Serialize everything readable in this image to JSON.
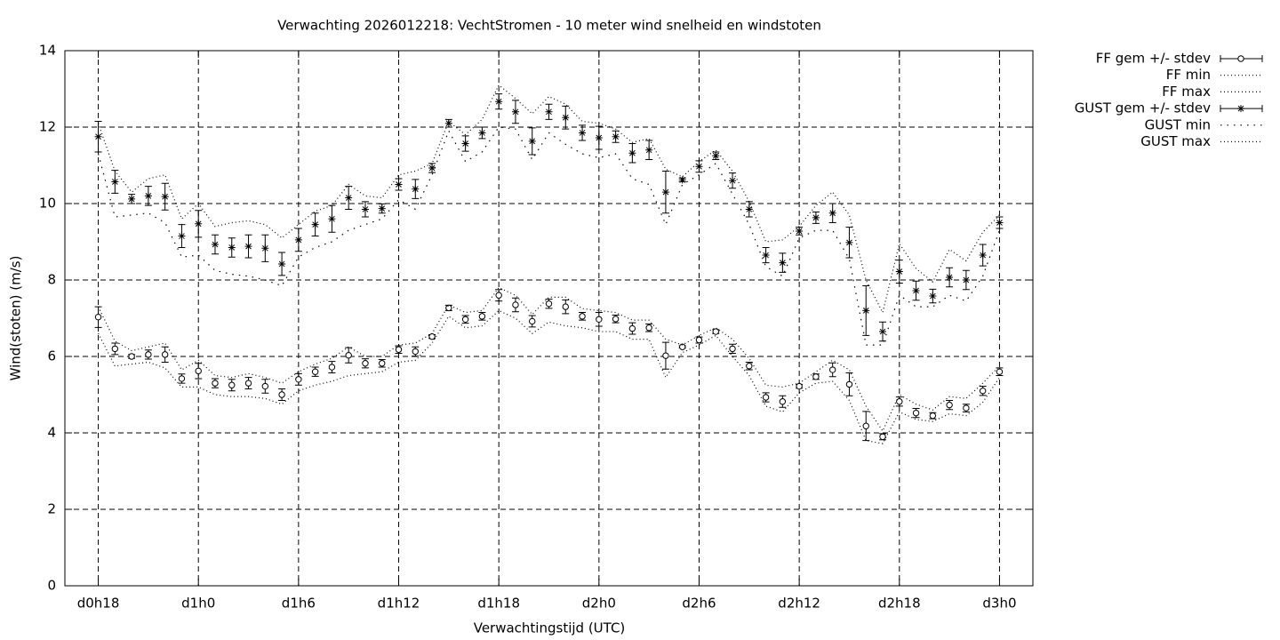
{
  "chart_data": {
    "type": "errorbar",
    "title": "Verwachting 2026012218: VechtStromen - 10 meter wind snelheid en windstoten",
    "x_label": "Verwachtingstijd (UTC)",
    "y_label": "Wind(stoten) (m/s)",
    "x": [
      18,
      19,
      20,
      21,
      22,
      23,
      24,
      25,
      26,
      27,
      28,
      29,
      30,
      31,
      32,
      33,
      34,
      35,
      36,
      37,
      38,
      39,
      40,
      41,
      42,
      43,
      44,
      45,
      46,
      47,
      48,
      49,
      50,
      51,
      52,
      53,
      54,
      55,
      56,
      57,
      58,
      59,
      60,
      61,
      62,
      63,
      64,
      65,
      66,
      67,
      68,
      69,
      70,
      71,
      72
    ],
    "xlim": [
      16,
      74
    ],
    "xticks": [
      {
        "value": 18,
        "label": "d0h18"
      },
      {
        "value": 24,
        "label": "d1h0"
      },
      {
        "value": 30,
        "label": "d1h6"
      },
      {
        "value": 36,
        "label": "d1h12"
      },
      {
        "value": 42,
        "label": "d1h18"
      },
      {
        "value": 48,
        "label": "d2h0"
      },
      {
        "value": 54,
        "label": "d2h6"
      },
      {
        "value": 60,
        "label": "d2h12"
      },
      {
        "value": 66,
        "label": "d2h18"
      },
      {
        "value": 72,
        "label": "d3h0"
      }
    ],
    "ylim": [
      0,
      14
    ],
    "yticks": [
      0,
      2,
      4,
      6,
      8,
      10,
      12,
      14
    ],
    "grid": true,
    "legend": "outside-top-right",
    "series": [
      {
        "name": "FF gem +/- stdev",
        "color": "#000000",
        "marker": "circle",
        "values": [
          7.03,
          6.2,
          6.0,
          6.05,
          6.05,
          5.42,
          5.62,
          5.3,
          5.25,
          5.3,
          5.22,
          5.0,
          5.4,
          5.6,
          5.72,
          6.03,
          5.82,
          5.82,
          6.18,
          6.13,
          6.52,
          7.27,
          6.97,
          7.05,
          7.6,
          7.35,
          6.92,
          7.38,
          7.3,
          7.05,
          6.97,
          6.98,
          6.73,
          6.75,
          6.02,
          6.25,
          6.43,
          6.65,
          6.2,
          5.75,
          4.93,
          4.82,
          5.22,
          5.47,
          5.65,
          5.27,
          4.18,
          3.9,
          4.82,
          4.52,
          4.45,
          4.73,
          4.65,
          5.1,
          5.6
        ],
        "errors": [
          0.27,
          0.15,
          0.05,
          0.12,
          0.2,
          0.12,
          0.2,
          0.12,
          0.15,
          0.15,
          0.18,
          0.15,
          0.15,
          0.12,
          0.15,
          0.2,
          0.12,
          0.1,
          0.1,
          0.12,
          0.05,
          0.07,
          0.1,
          0.1,
          0.15,
          0.18,
          0.15,
          0.12,
          0.18,
          0.1,
          0.18,
          0.1,
          0.15,
          0.1,
          0.35,
          0.03,
          0.08,
          0.05,
          0.12,
          0.1,
          0.12,
          0.15,
          0.05,
          0.07,
          0.18,
          0.3,
          0.38,
          0.08,
          0.12,
          0.12,
          0.08,
          0.12,
          0.1,
          0.12,
          0.1
        ]
      },
      {
        "name": "FF min",
        "color": "#000000",
        "line_style": "dotted",
        "values": [
          6.6,
          5.75,
          5.8,
          5.85,
          5.7,
          5.2,
          5.2,
          5.0,
          4.95,
          4.95,
          4.9,
          4.75,
          5.1,
          5.25,
          5.35,
          5.5,
          5.55,
          5.6,
          5.85,
          5.9,
          6.35,
          7.05,
          6.75,
          6.8,
          7.2,
          7.0,
          6.6,
          6.9,
          6.8,
          6.75,
          6.65,
          6.65,
          6.45,
          6.45,
          5.45,
          6.1,
          6.3,
          6.55,
          6.0,
          5.5,
          4.7,
          4.55,
          5.05,
          5.3,
          5.35,
          4.85,
          3.8,
          3.72,
          4.55,
          4.35,
          4.3,
          4.5,
          4.45,
          4.8,
          5.45
        ]
      },
      {
        "name": "FF max",
        "color": "#000000",
        "line_style": "dotted",
        "values": [
          7.3,
          6.4,
          6.15,
          6.25,
          6.35,
          5.65,
          5.9,
          5.5,
          5.45,
          5.55,
          5.45,
          5.3,
          5.6,
          5.8,
          5.95,
          6.25,
          6.0,
          6.0,
          6.3,
          6.35,
          6.6,
          7.35,
          7.15,
          7.2,
          7.8,
          7.6,
          7.1,
          7.55,
          7.55,
          7.25,
          7.2,
          7.15,
          6.95,
          6.95,
          6.45,
          6.3,
          6.55,
          6.75,
          6.45,
          5.95,
          5.25,
          5.2,
          5.3,
          5.6,
          5.9,
          5.65,
          4.7,
          4.05,
          5.0,
          4.75,
          4.6,
          4.95,
          4.9,
          5.3,
          5.75
        ]
      },
      {
        "name": "GUST gem +/- stdev",
        "color": "#000000",
        "marker": "star",
        "values": [
          11.75,
          10.57,
          10.12,
          10.2,
          10.18,
          9.15,
          9.47,
          8.93,
          8.85,
          8.88,
          8.83,
          8.42,
          9.05,
          9.45,
          9.6,
          10.15,
          9.85,
          9.87,
          10.5,
          10.38,
          10.93,
          12.1,
          11.57,
          11.85,
          12.67,
          12.4,
          11.63,
          12.4,
          12.25,
          11.85,
          11.72,
          11.75,
          11.32,
          11.4,
          10.3,
          10.62,
          10.97,
          11.25,
          10.6,
          9.85,
          8.65,
          8.45,
          9.28,
          9.63,
          9.75,
          8.98,
          7.2,
          6.65,
          8.22,
          7.72,
          7.58,
          8.07,
          8.0,
          8.65,
          9.5
        ],
        "errors": [
          0.4,
          0.3,
          0.12,
          0.25,
          0.35,
          0.3,
          0.35,
          0.25,
          0.25,
          0.3,
          0.35,
          0.3,
          0.3,
          0.3,
          0.35,
          0.3,
          0.2,
          0.12,
          0.15,
          0.25,
          0.12,
          0.1,
          0.2,
          0.15,
          0.2,
          0.3,
          0.35,
          0.2,
          0.3,
          0.2,
          0.3,
          0.15,
          0.25,
          0.25,
          0.55,
          0.05,
          0.15,
          0.1,
          0.2,
          0.2,
          0.2,
          0.25,
          0.1,
          0.15,
          0.25,
          0.4,
          0.65,
          0.25,
          0.3,
          0.25,
          0.18,
          0.25,
          0.25,
          0.28,
          0.15
        ]
      },
      {
        "name": "GUST min",
        "color": "#000000",
        "line_style": "loose-dotted",
        "values": [
          11.3,
          9.65,
          9.7,
          9.75,
          9.5,
          8.6,
          8.65,
          8.25,
          8.15,
          8.1,
          8.0,
          7.85,
          8.6,
          8.85,
          9.0,
          9.3,
          9.45,
          9.6,
          10.1,
          9.85,
          10.75,
          11.9,
          11.1,
          11.35,
          12.0,
          11.95,
          11.15,
          11.85,
          11.55,
          11.3,
          11.2,
          11.3,
          10.65,
          10.5,
          9.45,
          10.5,
          10.75,
          11.05,
          10.25,
          9.45,
          8.35,
          8.1,
          9.1,
          9.3,
          9.3,
          8.55,
          6.3,
          6.3,
          7.6,
          7.3,
          7.3,
          7.6,
          7.45,
          8.1,
          9.3
        ]
      },
      {
        "name": "GUST max",
        "color": "#000000",
        "line_style": "dotted",
        "values": [
          12.1,
          10.85,
          10.3,
          10.65,
          10.75,
          9.6,
          10.0,
          9.4,
          9.5,
          9.55,
          9.45,
          9.1,
          9.45,
          9.8,
          9.95,
          10.5,
          10.2,
          10.15,
          10.75,
          10.85,
          11.05,
          12.15,
          11.8,
          12.2,
          13.1,
          12.75,
          12.35,
          12.8,
          12.6,
          12.15,
          12.1,
          11.95,
          11.6,
          11.7,
          10.9,
          10.7,
          11.1,
          11.4,
          10.85,
          10.05,
          9.0,
          9.05,
          9.4,
          9.95,
          10.3,
          9.7,
          8.0,
          7.15,
          8.95,
          8.3,
          7.95,
          8.8,
          8.5,
          9.25,
          9.7
        ]
      }
    ]
  }
}
